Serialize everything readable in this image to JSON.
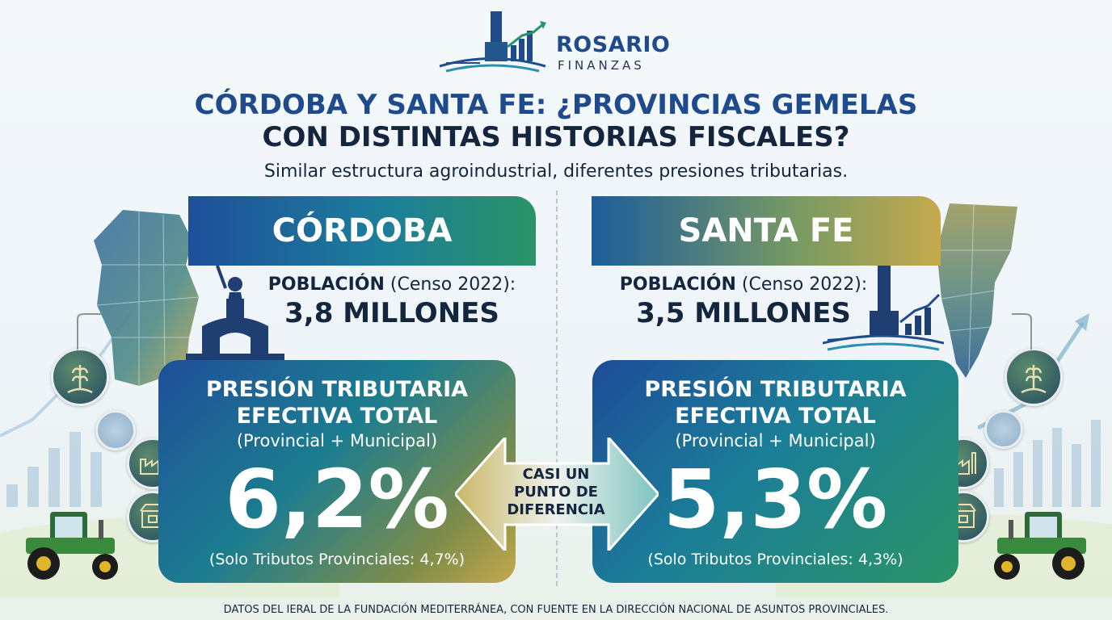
{
  "brand": {
    "name": "ROSARIO",
    "sub": "FINANZAS"
  },
  "title": {
    "line1": "CÓRDOBA Y SANTA FE: ¿PROVINCIAS GEMELAS",
    "line2": "CON DISTINTAS HISTORIAS FISCALES?",
    "subtitle": "Similar estructura agroindustrial, diferentes presiones tributarias."
  },
  "cordoba": {
    "name": "CÓRDOBA",
    "pop_label_bold": "POBLACIÓN",
    "pop_label_rest": " (Censo 2022):",
    "pop_value": "3,8 MILLONES",
    "card_title_1": "PRESIÓN TRIBUTARIA",
    "card_title_2": "EFECTIVA TOTAL",
    "card_sub": "(Provincial + Municipal)",
    "card_value": "6,2%",
    "card_foot": "(Solo Tributos Provinciales: 4,7%)"
  },
  "santafe": {
    "name": "SANTA FE",
    "pop_label_bold": "POBLACIÓN",
    "pop_label_rest": " (Censo 2022):",
    "pop_value": "3,5 MILLONES",
    "card_title_1": "PRESIÓN TRIBUTARIA",
    "card_title_2": "EFECTIVA TOTAL",
    "card_sub": "(Provincial + Municipal)",
    "card_value": "5,3%",
    "card_foot": "(Solo Tributos Provinciales: 4,3%)"
  },
  "middle": {
    "line1": "CASI UN",
    "line2": "PUNTO DE",
    "line3": "DIFERENCIA"
  },
  "source": "DATOS DEL IERAL DE LA FUNDACIÓN MEDITERRÁNEA, CON FUENTE EN LA DIRECCIÓN NACIONAL DE ASUNTOS PROVINCIALES.",
  "colors": {
    "navy": "#1f4a8c",
    "dark": "#13263d",
    "green": "#2a9466",
    "gold": "#c5a94d"
  },
  "icons": [
    "wheat-icon",
    "factory-icon",
    "market-icon",
    "pie-chart-icon",
    "tractor-icon",
    "monument-icon",
    "bridge-icon",
    "map-icon",
    "growth-chart-icon"
  ]
}
